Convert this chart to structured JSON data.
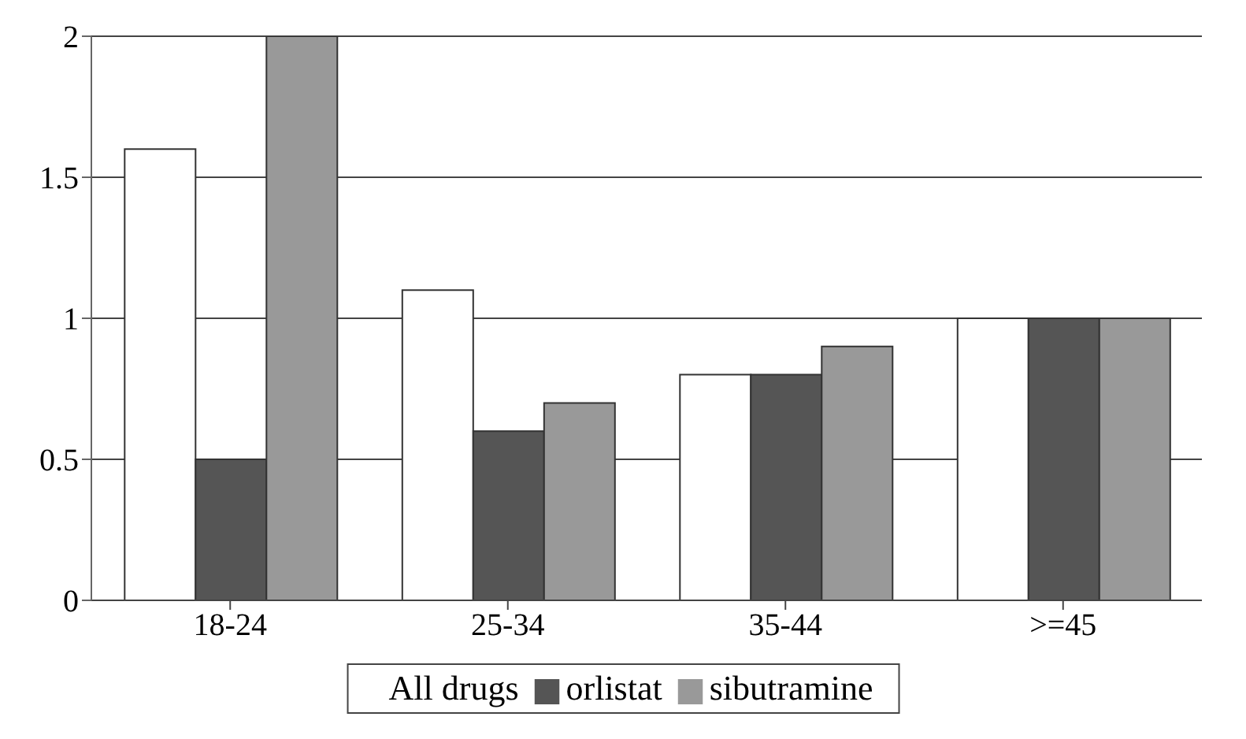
{
  "chart_data": {
    "type": "bar",
    "categories": [
      "18-24",
      "25-34",
      "35-44",
      ">=45"
    ],
    "series": [
      {
        "name": "All drugs",
        "color": "#ffffff",
        "values": [
          1.6,
          1.1,
          0.8,
          1.0
        ]
      },
      {
        "name": "orlistat",
        "color": "#555555",
        "values": [
          0.5,
          0.6,
          0.8,
          1.0
        ]
      },
      {
        "name": "sibutramine",
        "color": "#999999",
        "values": [
          2.0,
          0.7,
          0.9,
          1.0
        ]
      }
    ],
    "ylim": [
      0,
      2
    ],
    "yticks": [
      0,
      0.5,
      1,
      1.5,
      2
    ],
    "grid": "y",
    "legend": "bottom"
  }
}
